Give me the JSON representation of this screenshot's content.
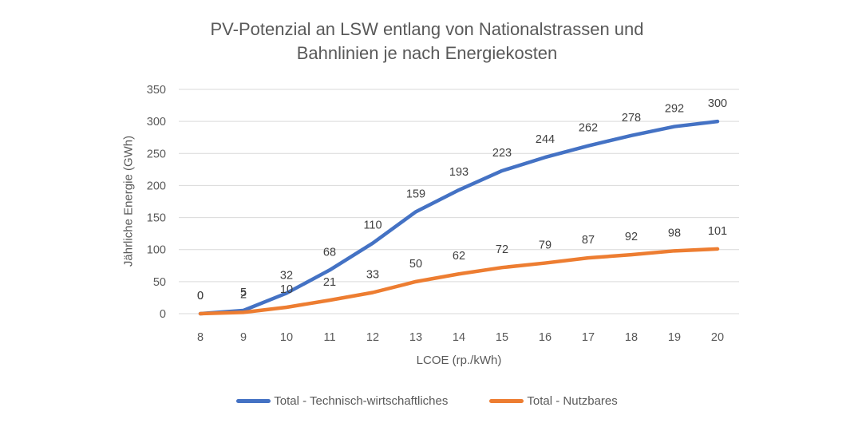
{
  "title": {
    "line1": "PV-Potenzial an LSW entlang von Nationalstrassen und",
    "line2": "Bahnlinien je nach Energiekosten"
  },
  "chart_data": {
    "type": "line",
    "x": [
      8,
      9,
      10,
      11,
      12,
      13,
      14,
      15,
      16,
      17,
      18,
      19,
      20
    ],
    "series": [
      {
        "name": "Total - Technisch-wirtschaftliches",
        "color": "#4472C4",
        "values": [
          0,
          5,
          32,
          68,
          110,
          159,
          193,
          223,
          244,
          262,
          278,
          292,
          300
        ]
      },
      {
        "name": "Total - Nutzbares",
        "color": "#ED7D31",
        "values": [
          0,
          2,
          10,
          21,
          33,
          50,
          62,
          72,
          79,
          87,
          92,
          98,
          101
        ]
      }
    ],
    "xlabel": "LCOE (rp./kWh)",
    "ylabel": "Jährliche Energie (GWh)",
    "yticks": [
      0,
      50,
      100,
      150,
      200,
      250,
      300,
      350
    ],
    "ylim": [
      0,
      350
    ],
    "grid": true,
    "data_labels": true,
    "legend_position": "bottom",
    "colors": {
      "grid": "#D9D9D9",
      "tick_text": "#595959",
      "data_label_text": "#404040",
      "title_text": "#595959",
      "background": "#FFFFFF"
    }
  }
}
